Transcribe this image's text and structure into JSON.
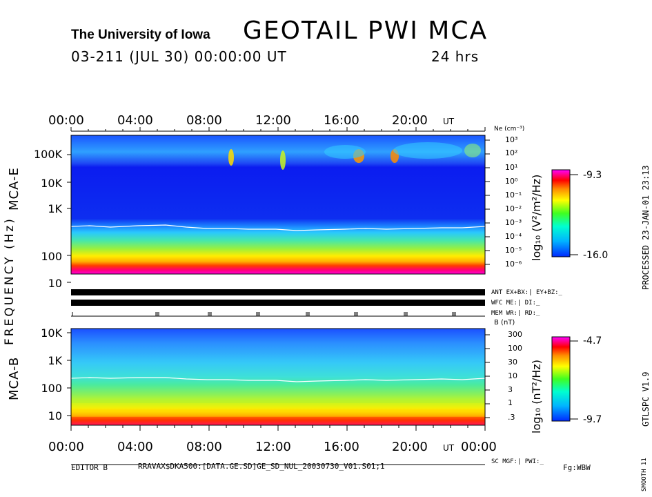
{
  "header": {
    "university": "The University of Iowa",
    "title": "GEOTAIL  PWI  MCA",
    "datetime": "03-211 (JUL 30) 00:00:00 UT",
    "duration": "24 hrs"
  },
  "time_axis": {
    "top_labels": [
      "00:00",
      "04:00",
      "08:00",
      "12:00",
      "16:00",
      "20:00"
    ],
    "top_unit": "UT",
    "bottom_labels": [
      "00:00",
      "04:00",
      "08:00",
      "12:00",
      "16:00",
      "20:00",
      "00:00"
    ],
    "bottom_unit": "UT"
  },
  "y_axis": {
    "frequency_label": "FREQUENCY (Hz)",
    "mca_e_label": "MCA-E",
    "mca_b_label": "MCA-B",
    "mca_e_ticks": [
      "100K",
      "10K",
      "1K",
      "100",
      "10"
    ],
    "mca_b_ticks": [
      "10K",
      "1K",
      "100",
      "10"
    ]
  },
  "ne_axis": {
    "header": "Ne (cm⁻³)",
    "ticks": [
      "10³",
      "10²",
      "10¹",
      "10⁰",
      "10⁻¹",
      "10⁻²",
      "10⁻³",
      "10⁻⁴",
      "10⁻⁵",
      "10⁻⁶"
    ]
  },
  "b_axis": {
    "header": "B (nT)",
    "ticks": [
      "300",
      "100",
      "30",
      "10",
      "3",
      "1",
      ".3"
    ]
  },
  "colorbar_e": {
    "label": "log₁₀ (V²/m²/Hz)",
    "max": "-9.3",
    "min": "-16.0"
  },
  "colorbar_b": {
    "label": "log₁₀ (nT²/Hz)",
    "max": "-4.7",
    "min": "-9.7"
  },
  "status_bars": {
    "ant": "ANT EX+BX:| EY+BZ:_",
    "wfc": "WFC ME:|     DI:_",
    "mem": "MEM WR:|     RD:_",
    "sc": "SC MGF:|   PWI:_"
  },
  "right_side": {
    "processed": "PROCESSED 23-JAN-01  23:13",
    "version": "GTLSPC   V1.9",
    "smooth": "SMOOTH 11"
  },
  "footer": {
    "editor": "EDITOR B",
    "path": "RRAVAX$DKA500:[DATA.GE.SD]GE_SD_NUL_20030730_V01.S01;1",
    "fg": "Fg:WBW"
  },
  "chart_data": [
    {
      "type": "heatmap",
      "panel": "MCA-E",
      "x_range_hours": [
        0,
        24
      ],
      "y_axis": "frequency (Hz), log scale",
      "y_range": [
        5,
        300000
      ],
      "color_range": [
        -16.0,
        -9.3
      ],
      "color_label": "log10 (V2/m2/Hz)",
      "description_bands": [
        {
          "freq_range": [
            5,
            15
          ],
          "level": "high (red/magenta)"
        },
        {
          "freq_range": [
            15,
            60
          ],
          "level": "medium-high (yellow/green)"
        },
        {
          "freq_range": [
            60,
            200
          ],
          "level": "medium (cyan/green)"
        },
        {
          "freq_range": [
            200,
            10000
          ],
          "level": "low (blue)"
        },
        {
          "freq_range": [
            10000,
            300000
          ],
          "level": "low-medium (blue/cyan, patchy)"
        }
      ],
      "white_line_freq_hz": 200
    },
    {
      "type": "heatmap",
      "panel": "MCA-B",
      "x_range_hours": [
        0,
        24
      ],
      "y_axis": "frequency (Hz), log scale",
      "y_range": [
        5,
        12000
      ],
      "color_range": [
        -9.7,
        -4.7
      ],
      "color_label": "log10 (nT2/Hz)",
      "description_bands": [
        {
          "freq_range": [
            5,
            15
          ],
          "level": "high (red/magenta)"
        },
        {
          "freq_range": [
            15,
            60
          ],
          "level": "medium-high (yellow/green)"
        },
        {
          "freq_range": [
            60,
            200
          ],
          "level": "medium (green/cyan)"
        },
        {
          "freq_range": [
            200,
            2000
          ],
          "level": "low-medium (cyan)"
        },
        {
          "freq_range": [
            2000,
            12000
          ],
          "level": "low (blue)"
        }
      ],
      "white_line_freq_hz": 200
    }
  ]
}
